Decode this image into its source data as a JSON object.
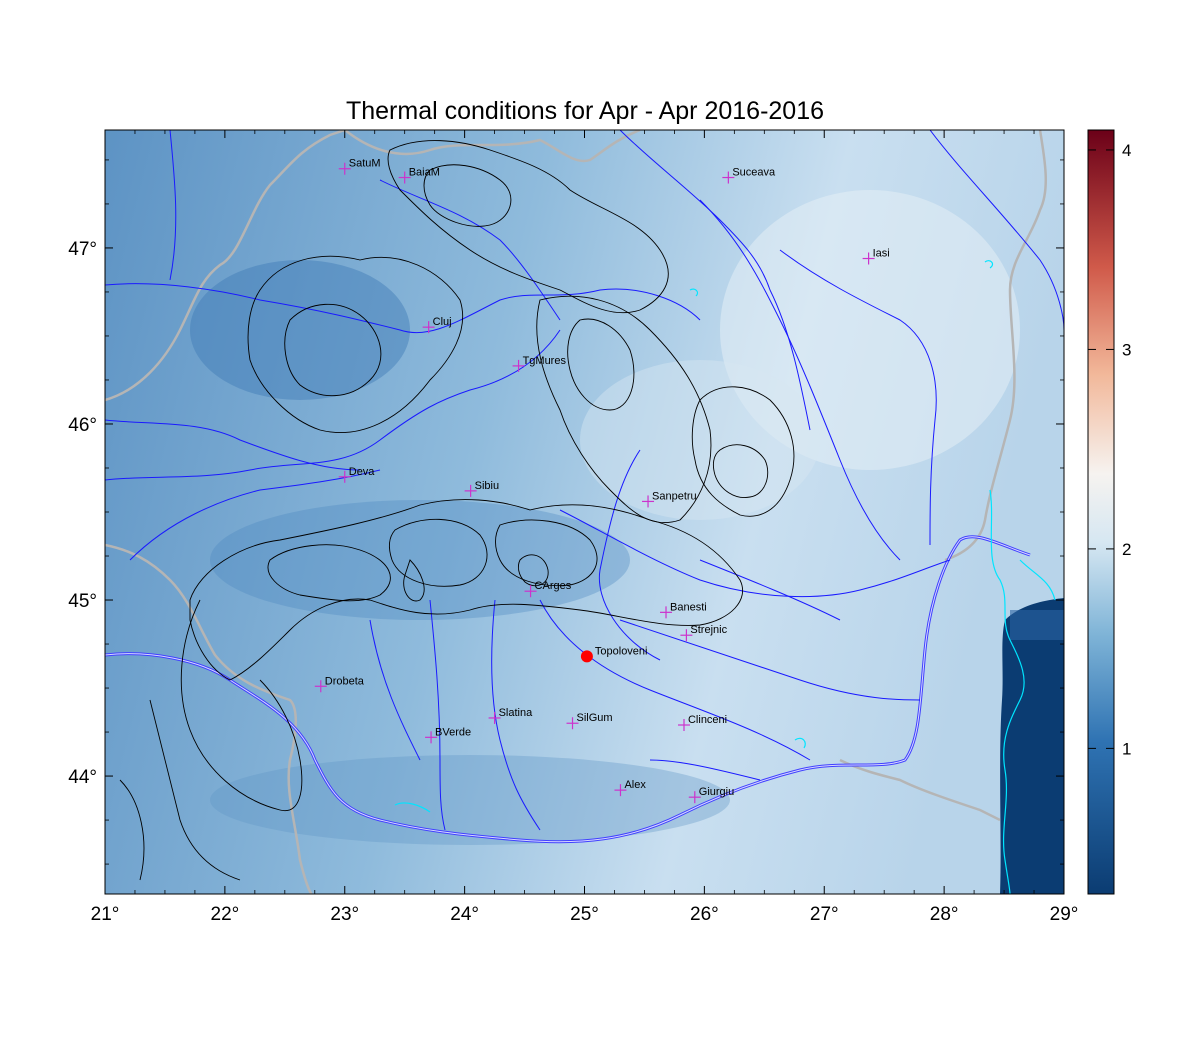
{
  "title": "Thermal conditions for Apr - Apr  2016-2016",
  "axes": {
    "x_ticks": [
      "21°",
      "22°",
      "23°",
      "24°",
      "25°",
      "26°",
      "27°",
      "28°",
      "29°"
    ],
    "y_ticks": [
      "44°",
      "45°",
      "46°",
      "47°"
    ]
  },
  "colorbar": {
    "ticks": [
      "1",
      "2",
      "3",
      "4"
    ],
    "colors": [
      "#0b3c72",
      "#2f73b3",
      "#7fb4d7",
      "#d6e7f2",
      "#f6f3f0",
      "#f2b89a",
      "#d05a4a",
      "#6b0018"
    ]
  },
  "cities": [
    {
      "name": "SatuM",
      "lon": 23.0,
      "lat": 47.45
    },
    {
      "name": "BaiaM",
      "lon": 23.5,
      "lat": 47.4
    },
    {
      "name": "Suceava",
      "lon": 26.2,
      "lat": 47.4
    },
    {
      "name": "Iasi",
      "lon": 27.37,
      "lat": 46.94
    },
    {
      "name": "Cluj",
      "lon": 23.7,
      "lat": 46.55
    },
    {
      "name": "TgMures",
      "lon": 24.45,
      "lat": 46.33
    },
    {
      "name": "Deva",
      "lon": 23.0,
      "lat": 45.7
    },
    {
      "name": "Sibiu",
      "lon": 24.05,
      "lat": 45.62
    },
    {
      "name": "Sanpetru",
      "lon": 25.53,
      "lat": 45.56
    },
    {
      "name": "CArges",
      "lon": 24.55,
      "lat": 45.05
    },
    {
      "name": "Banesti",
      "lon": 25.68,
      "lat": 44.93
    },
    {
      "name": "Strejnic",
      "lon": 25.85,
      "lat": 44.8
    },
    {
      "name": "Drobeta",
      "lon": 22.8,
      "lat": 44.51
    },
    {
      "name": "Slatina",
      "lon": 24.25,
      "lat": 44.33
    },
    {
      "name": "SilGum",
      "lon": 24.9,
      "lat": 44.3
    },
    {
      "name": "Clinceni",
      "lon": 25.83,
      "lat": 44.29
    },
    {
      "name": "BVerde",
      "lon": 23.72,
      "lat": 44.22
    },
    {
      "name": "Alex",
      "lon": 25.3,
      "lat": 43.92
    },
    {
      "name": "Giurgiu",
      "lon": 25.92,
      "lat": 43.88
    }
  ],
  "highlight_station": {
    "name": "Topoloveni",
    "lon": 25.02,
    "lat": 44.68,
    "color": "#ff0000"
  },
  "marker_color": "#cc33cc"
}
